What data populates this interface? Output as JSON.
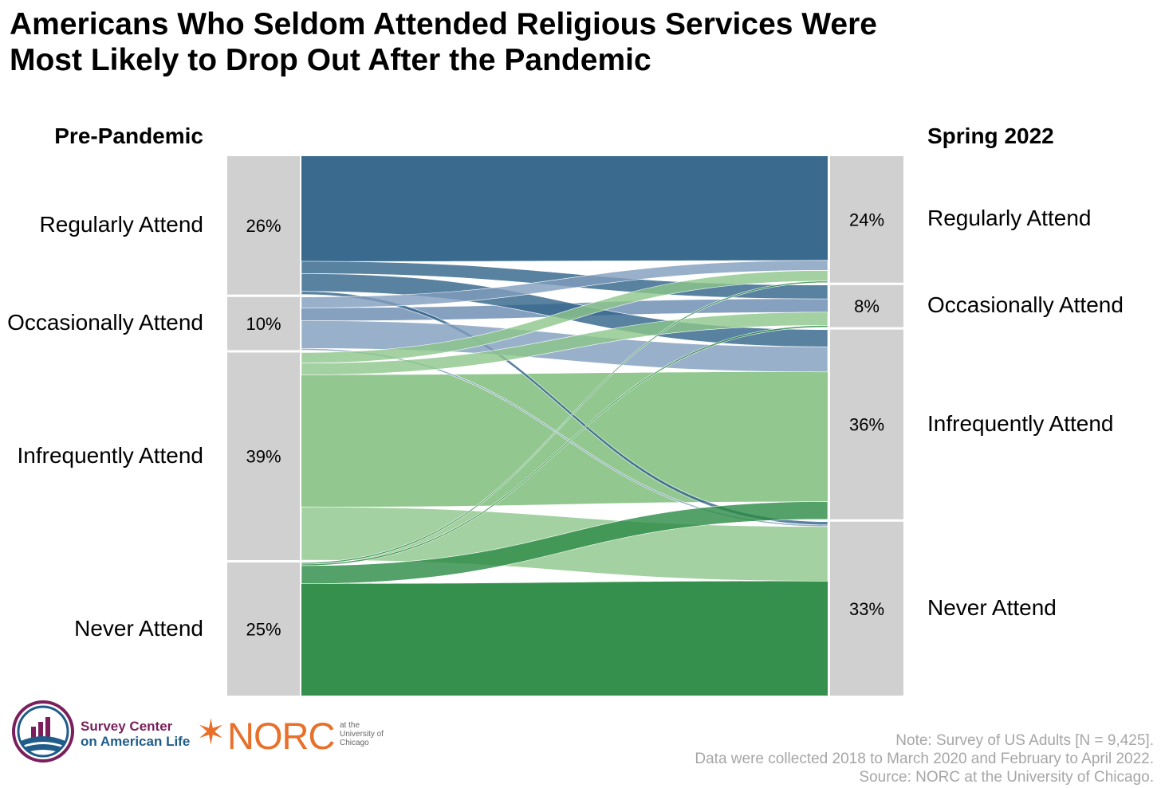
{
  "title": {
    "line1": "Americans Who Seldom Attended Religious Services Were",
    "line2": "Most Likely to Drop Out After the Pandemic"
  },
  "chart_data": {
    "type": "sankey",
    "left_header": "Pre-Pandemic",
    "right_header": "Spring 2022",
    "left_nodes": [
      {
        "label": "Regularly Attend",
        "pct": "26%",
        "value": 26
      },
      {
        "label": "Occasionally Attend",
        "pct": "10%",
        "value": 10
      },
      {
        "label": "Infrequently Attend",
        "pct": "39%",
        "value": 39
      },
      {
        "label": "Never Attend",
        "pct": "25%",
        "value": 25
      }
    ],
    "right_nodes": [
      {
        "label": "Regularly Attend",
        "pct": "24%",
        "value": 24
      },
      {
        "label": "Occasionally Attend",
        "pct": "8%",
        "value": 8
      },
      {
        "label": "Infrequently Attend",
        "pct": "36%",
        "value": 36
      },
      {
        "label": "Never Attend",
        "pct": "33%",
        "value": 33
      }
    ],
    "flows": [
      {
        "from": 0,
        "to": 0,
        "value": 19.6
      },
      {
        "from": 0,
        "to": 1,
        "value": 2.3
      },
      {
        "from": 0,
        "to": 2,
        "value": 3.3
      },
      {
        "from": 0,
        "to": 3,
        "value": 0.6
      },
      {
        "from": 1,
        "to": 0,
        "value": 1.9
      },
      {
        "from": 1,
        "to": 1,
        "value": 2.2
      },
      {
        "from": 1,
        "to": 2,
        "value": 4.8
      },
      {
        "from": 1,
        "to": 3,
        "value": 0.3
      },
      {
        "from": 2,
        "to": 0,
        "value": 2.0
      },
      {
        "from": 2,
        "to": 1,
        "value": 2.2
      },
      {
        "from": 2,
        "to": 2,
        "value": 24.8
      },
      {
        "from": 2,
        "to": 3,
        "value": 10.0
      },
      {
        "from": 3,
        "to": 0,
        "value": 0.3
      },
      {
        "from": 3,
        "to": 1,
        "value": 0.3
      },
      {
        "from": 3,
        "to": 2,
        "value": 3.4
      },
      {
        "from": 3,
        "to": 3,
        "value": 21.0
      }
    ],
    "colors": [
      "#2f6388",
      "#7f9cbd",
      "#8cc58a",
      "#2a8a45"
    ]
  },
  "note": {
    "line1": "Note: Survey of US Adults [N = 9,425].",
    "line2": "Data were collected 2018 to March 2020 and February to April 2022.",
    "line3": "Source: NORC at the University of Chicago."
  },
  "logos": {
    "survey_center_line1": "Survey Center",
    "survey_center_line2": "on American Life",
    "norc": "NORC",
    "norc_sub1": "at the",
    "norc_sub2": "University of",
    "norc_sub3": "Chicago"
  }
}
